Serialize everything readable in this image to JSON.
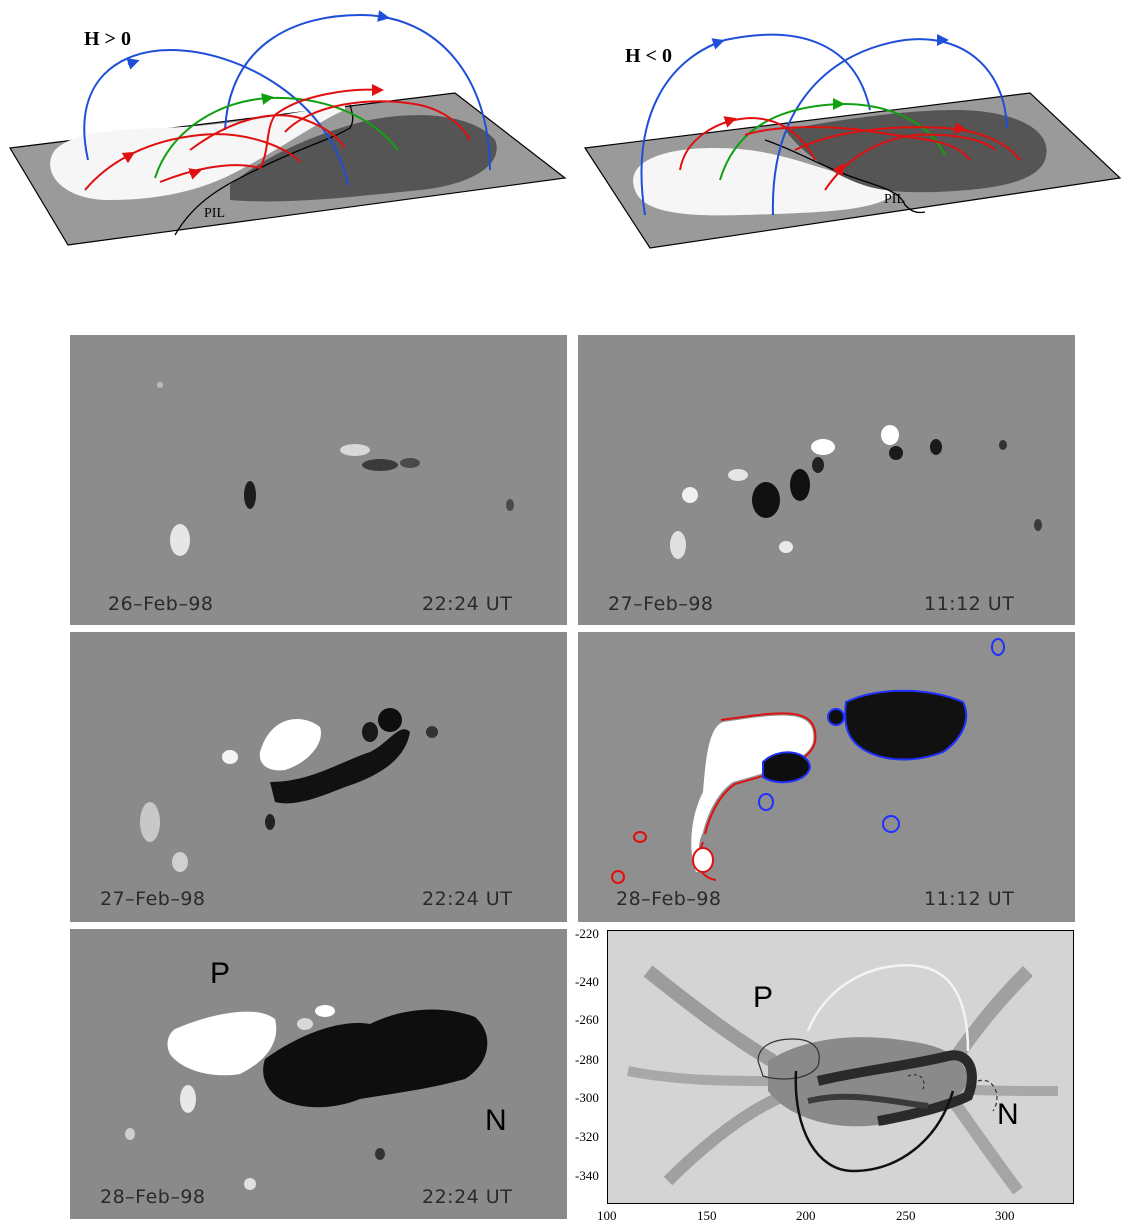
{
  "schematic": {
    "left": {
      "helicity_label": "H > 0",
      "pil_label": "PIL"
    },
    "right": {
      "helicity_label": "H < 0",
      "pil_label": "PIL"
    }
  },
  "magnetograms": [
    {
      "date": "26–Feb–98",
      "time": "22:24 UT"
    },
    {
      "date": "27–Feb–98",
      "time": "11:12 UT"
    },
    {
      "date": "27–Feb–98",
      "time": "22:24 UT"
    },
    {
      "date": "28–Feb–98",
      "time": "11:12 UT"
    },
    {
      "date": "28–Feb–98",
      "time": "22:24 UT",
      "positive_label": "P",
      "negative_label": "N"
    }
  ],
  "coronal_panel": {
    "positive_label": "P",
    "negative_label": "N",
    "y_ticks": [
      "-220",
      "-240",
      "-260",
      "-280",
      "-300",
      "-320",
      "-340"
    ],
    "x_ticks": [
      "100",
      "150",
      "200",
      "250",
      "300"
    ]
  }
}
